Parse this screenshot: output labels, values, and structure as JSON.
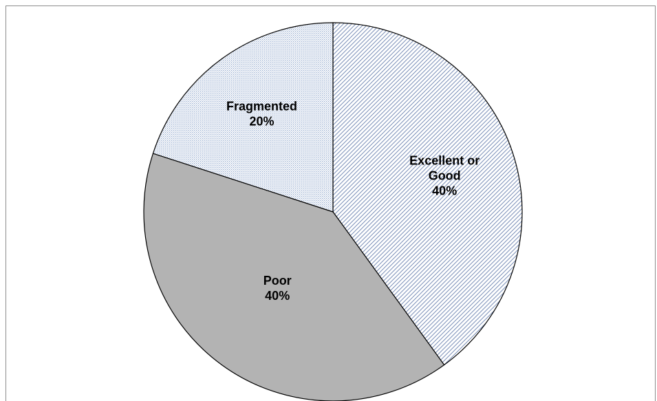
{
  "chart_data": {
    "type": "pie",
    "title": "",
    "slices": [
      {
        "label_lines": [
          "Excellent or",
          "Good"
        ],
        "value": 40,
        "value_label": "40%",
        "fill_style": "diagonal-hatch",
        "color": "#7a8fb8"
      },
      {
        "label_lines": [
          "Poor"
        ],
        "value": 40,
        "value_label": "40%",
        "fill_style": "solid",
        "color": "#b3b3b3"
      },
      {
        "label_lines": [
          "Fragmented"
        ],
        "value": 20,
        "value_label": "20%",
        "fill_style": "dotted",
        "color": "#8fa6cc"
      }
    ],
    "start_angle_deg": 0,
    "direction": "clockwise",
    "legend": "none",
    "edge_color": "#000000"
  }
}
